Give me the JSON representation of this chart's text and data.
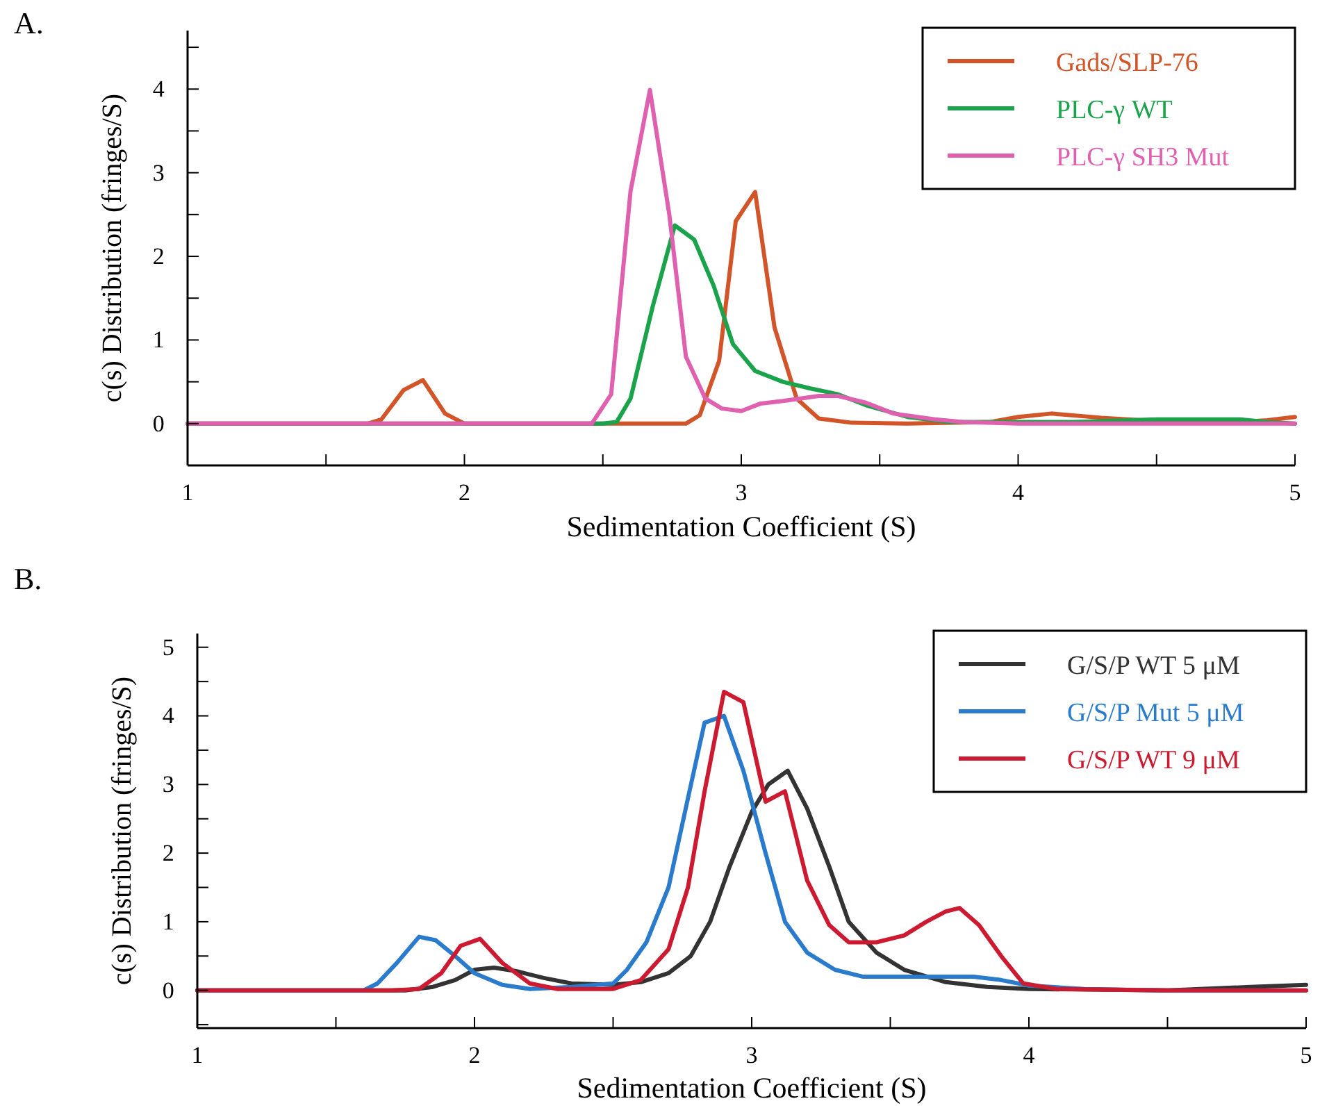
{
  "chart_data": [
    {
      "type": "line",
      "title": "A.",
      "xlabel": "Sedimentation Coefficient (S)",
      "ylabel": "c(s) Distribution (fringes/S)",
      "xlim": [
        1,
        5
      ],
      "ylim": [
        -0.5,
        4.7
      ],
      "xticks": [
        1,
        {
          "value": 1.5,
          "label": null
        },
        2,
        {
          "value": 2.5,
          "label": null
        },
        3,
        {
          "value": 3.5,
          "label": null
        },
        4,
        {
          "value": 4.5,
          "label": null
        },
        5
      ],
      "yticks": [
        {
          "value": -0.5,
          "label": null
        },
        0,
        {
          "value": 0.5,
          "label": null
        },
        1,
        {
          "value": 1.5,
          "label": null
        },
        2,
        {
          "value": 2.5,
          "label": null
        },
        3,
        {
          "value": 3.5,
          "label": null
        },
        4,
        {
          "value": 4.5,
          "label": null
        }
      ],
      "legend": "top right",
      "series": [
        {
          "name": "Gads/SLP-76",
          "color": "#d2552a",
          "x": [
            1,
            1.65,
            1.7,
            1.78,
            1.85,
            1.93,
            2.0,
            2.8,
            2.85,
            2.92,
            2.98,
            3.05,
            3.12,
            3.2,
            3.28,
            3.4,
            3.6,
            3.9,
            4.0,
            4.12,
            4.3,
            4.5,
            4.8,
            4.9,
            5
          ],
          "values": [
            0,
            0,
            0.05,
            0.4,
            0.52,
            0.12,
            0,
            0,
            0.1,
            0.75,
            2.42,
            2.77,
            1.15,
            0.3,
            0.06,
            0.01,
            0,
            0.02,
            0.08,
            0.12,
            0.07,
            0.03,
            0.02,
            0.04,
            0.08
          ]
        },
        {
          "name": "PLC-γ WT",
          "color": "#1aa34a",
          "x": [
            1,
            2.5,
            2.55,
            2.6,
            2.68,
            2.76,
            2.83,
            2.9,
            2.97,
            3.05,
            3.15,
            3.25,
            3.35,
            3.45,
            3.6,
            3.75,
            4.2,
            4.5,
            4.8,
            4.9,
            5
          ],
          "values": [
            0,
            0,
            0.02,
            0.3,
            1.4,
            2.37,
            2.2,
            1.65,
            0.95,
            0.63,
            0.5,
            0.42,
            0.35,
            0.22,
            0.08,
            0.02,
            0.02,
            0.05,
            0.05,
            0.02,
            0
          ]
        },
        {
          "name": "PLC-γ SH3 Mut",
          "color": "#e060b0",
          "x": [
            1,
            2.46,
            2.53,
            2.6,
            2.67,
            2.74,
            2.8,
            2.87,
            2.93,
            3.0,
            3.07,
            3.15,
            3.28,
            3.35,
            3.45,
            3.55,
            3.7,
            3.8,
            4.0,
            5
          ],
          "values": [
            0,
            0,
            0.35,
            2.78,
            3.99,
            2.5,
            0.8,
            0.3,
            0.18,
            0.15,
            0.24,
            0.27,
            0.33,
            0.33,
            0.25,
            0.12,
            0.05,
            0.02,
            0,
            0
          ]
        }
      ]
    },
    {
      "type": "line",
      "title": "B.",
      "xlabel": "Sedimentation Coefficient (S)",
      "ylabel": "c(s) Distribution (fringes/S)",
      "xlim": [
        1,
        5
      ],
      "ylim": [
        -0.55,
        5.2
      ],
      "xticks": [
        1,
        {
          "value": 1.5,
          "label": null
        },
        2,
        {
          "value": 2.5,
          "label": null
        },
        3,
        {
          "value": 3.5,
          "label": null
        },
        4,
        {
          "value": 4.5,
          "label": null
        },
        5
      ],
      "yticks": [
        {
          "value": -0.5,
          "label": null
        },
        0,
        {
          "value": 0.5,
          "label": null
        },
        1,
        {
          "value": 1.5,
          "label": null
        },
        2,
        {
          "value": 2.5,
          "label": null
        },
        3,
        {
          "value": 3.5,
          "label": null
        },
        4,
        {
          "value": 4.5,
          "label": null
        },
        5
      ],
      "legend": "top right",
      "series": [
        {
          "name": "G/S/P WT  5 μM",
          "color": "#333333",
          "x": [
            1,
            1.75,
            1.85,
            1.93,
            2.0,
            2.07,
            2.15,
            2.25,
            2.35,
            2.5,
            2.6,
            2.7,
            2.78,
            2.85,
            2.92,
            3.0,
            3.06,
            3.13,
            3.2,
            3.28,
            3.35,
            3.45,
            3.55,
            3.7,
            3.85,
            4.0,
            4.5,
            4.8,
            5
          ],
          "values": [
            0,
            0,
            0.05,
            0.15,
            0.3,
            0.33,
            0.28,
            0.18,
            0.1,
            0.08,
            0.12,
            0.25,
            0.5,
            1.0,
            1.8,
            2.6,
            3.0,
            3.2,
            2.65,
            1.8,
            1.0,
            0.55,
            0.3,
            0.12,
            0.05,
            0.02,
            0,
            0.05,
            0.08
          ]
        },
        {
          "name": "G/S/P Mut 5 μM",
          "color": "#2a7bcc",
          "x": [
            1,
            1.6,
            1.65,
            1.72,
            1.8,
            1.86,
            1.93,
            2.0,
            2.1,
            2.2,
            2.35,
            2.5,
            2.55,
            2.62,
            2.7,
            2.77,
            2.83,
            2.9,
            2.97,
            3.05,
            3.12,
            3.2,
            3.3,
            3.4,
            3.5,
            3.6,
            3.8,
            3.9,
            4.0,
            4.2,
            4.5,
            5
          ],
          "values": [
            0,
            0,
            0.1,
            0.4,
            0.78,
            0.73,
            0.5,
            0.25,
            0.08,
            0.02,
            0.05,
            0.1,
            0.3,
            0.7,
            1.5,
            2.8,
            3.9,
            4.0,
            3.2,
            2.0,
            1.0,
            0.55,
            0.3,
            0.2,
            0.2,
            0.2,
            0.2,
            0.15,
            0.07,
            0.02,
            0,
            0
          ]
        },
        {
          "name": "G/S/P WT  9 μM",
          "color": "#cc1a30",
          "x": [
            1,
            1.7,
            1.8,
            1.88,
            1.95,
            2.02,
            2.1,
            2.2,
            2.3,
            2.5,
            2.6,
            2.7,
            2.77,
            2.83,
            2.9,
            2.97,
            3.05,
            3.12,
            3.2,
            3.28,
            3.35,
            3.45,
            3.55,
            3.63,
            3.7,
            3.75,
            3.82,
            3.9,
            3.98,
            4.1,
            4.5,
            5
          ],
          "values": [
            0,
            0,
            0.02,
            0.25,
            0.65,
            0.75,
            0.4,
            0.1,
            0.02,
            0.02,
            0.15,
            0.6,
            1.5,
            2.9,
            4.35,
            4.2,
            2.75,
            2.9,
            1.6,
            0.95,
            0.7,
            0.7,
            0.8,
            1.0,
            1.15,
            1.2,
            0.95,
            0.5,
            0.1,
            0.02,
            0,
            0
          ]
        }
      ]
    }
  ]
}
